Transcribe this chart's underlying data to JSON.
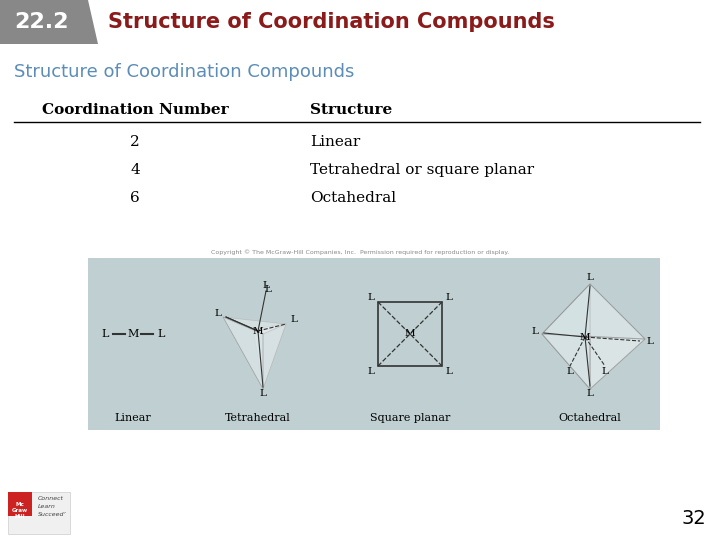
{
  "title_box_text": "22.2",
  "title_box_color": "#888888",
  "title_text": "Structure of Coordination Compounds",
  "title_color": "#8B1A1A",
  "subtitle_text": "Structure of Coordination Compounds",
  "subtitle_color": "#5B8DB8",
  "table_headers": [
    "Coordination Number",
    "Structure"
  ],
  "table_rows": [
    [
      "2",
      "Linear"
    ],
    [
      "4",
      "Tetrahedral or square planar"
    ],
    [
      "6",
      "Octahedral"
    ]
  ],
  "image_bg_color": "#C0D0D2",
  "page_number": "32",
  "background_color": "#FFFFFF",
  "footer_logo_red": "#CC2222",
  "shape_fill": "#D8E4E6",
  "shape_fill2": "#E8EEEF",
  "line_color": "#333333"
}
